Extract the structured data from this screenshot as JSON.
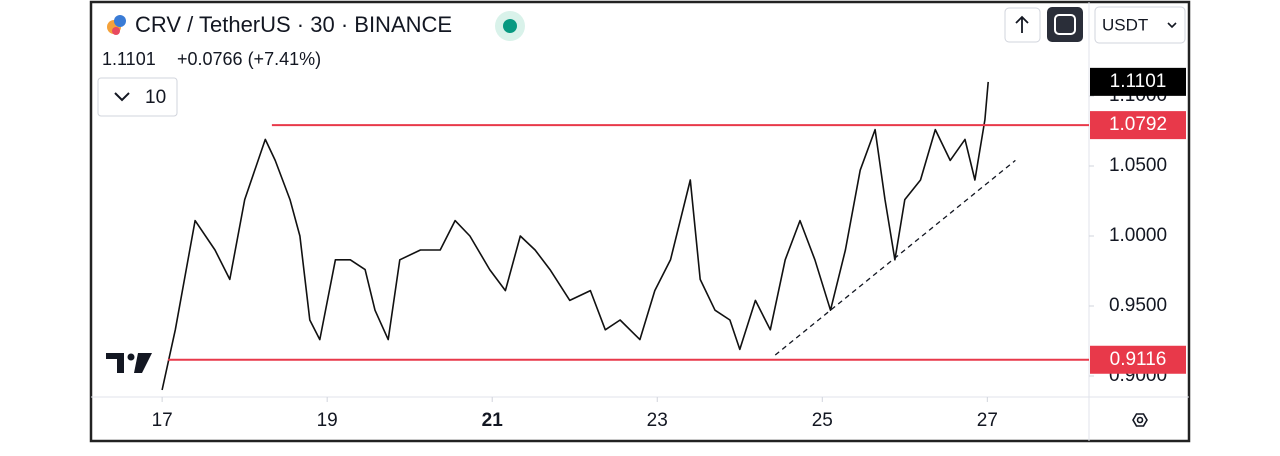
{
  "chart_data": {
    "type": "line",
    "title": "CRV / TetherUS · 30 · BINANCE",
    "last_price": "1.1101",
    "change": "+0.0766 (+7.41%)",
    "indicator_count": 10,
    "currency": "USDT",
    "xlim": [
      16.15,
      28.22
    ],
    "xticks": [
      17,
      19,
      21,
      23,
      25,
      27
    ],
    "xtick_bold": [
      false,
      false,
      true,
      false,
      false,
      false
    ],
    "ylim": [
      0.885,
      1.165
    ],
    "yticks": [
      {
        "value": 0.9,
        "label": "0.9000"
      },
      {
        "value": 0.95,
        "label": "0.9500"
      },
      {
        "value": 1.0,
        "label": "1.0000"
      },
      {
        "value": 1.05,
        "label": "1.0500"
      },
      {
        "value": 1.1,
        "label": "1.1000"
      }
    ],
    "series": [
      {
        "name": "CRVUSDT",
        "color": "#111111",
        "x": [
          17.0,
          17.16,
          17.4,
          17.64,
          17.82,
          18.0,
          18.25,
          18.37,
          18.55,
          18.67,
          18.79,
          18.91,
          19.1,
          19.28,
          19.46,
          19.58,
          19.74,
          19.88,
          20.13,
          20.37,
          20.55,
          20.73,
          20.97,
          21.16,
          21.34,
          21.52,
          21.7,
          21.94,
          22.19,
          22.37,
          22.55,
          22.79,
          22.97,
          23.16,
          23.4,
          23.52,
          23.7,
          23.88,
          24.0,
          24.19,
          24.37,
          24.55,
          24.73,
          24.91,
          25.1,
          25.28,
          25.46,
          25.64,
          25.76,
          25.88,
          26.0,
          26.19,
          26.37,
          26.55,
          26.73,
          26.85,
          26.97,
          27.01
        ],
        "values": [
          0.89,
          0.933,
          1.011,
          0.99,
          0.969,
          1.026,
          1.069,
          1.054,
          1.026,
          1.0,
          0.94,
          0.926,
          0.983,
          0.983,
          0.976,
          0.947,
          0.926,
          0.983,
          0.99,
          0.99,
          1.011,
          1.0,
          0.976,
          0.961,
          1.0,
          0.99,
          0.976,
          0.954,
          0.961,
          0.933,
          0.94,
          0.926,
          0.961,
          0.983,
          1.04,
          0.969,
          0.947,
          0.94,
          0.919,
          0.954,
          0.933,
          0.983,
          1.011,
          0.983,
          0.947,
          0.99,
          1.047,
          1.076,
          1.026,
          0.983,
          1.026,
          1.04,
          1.076,
          1.054,
          1.069,
          1.04,
          1.083,
          1.1101
        ]
      }
    ],
    "last_price_label": "1.1101",
    "levels": [
      {
        "value": 1.0792,
        "label": "1.0792",
        "color": "#e8394a",
        "start": 18.33
      },
      {
        "value": 0.9116,
        "label": "0.9116",
        "color": "#e8394a",
        "start": 17.07
      }
    ],
    "trendline": {
      "x": [
        24.43,
        27.34
      ],
      "y": [
        0.915,
        1.054
      ]
    }
  }
}
